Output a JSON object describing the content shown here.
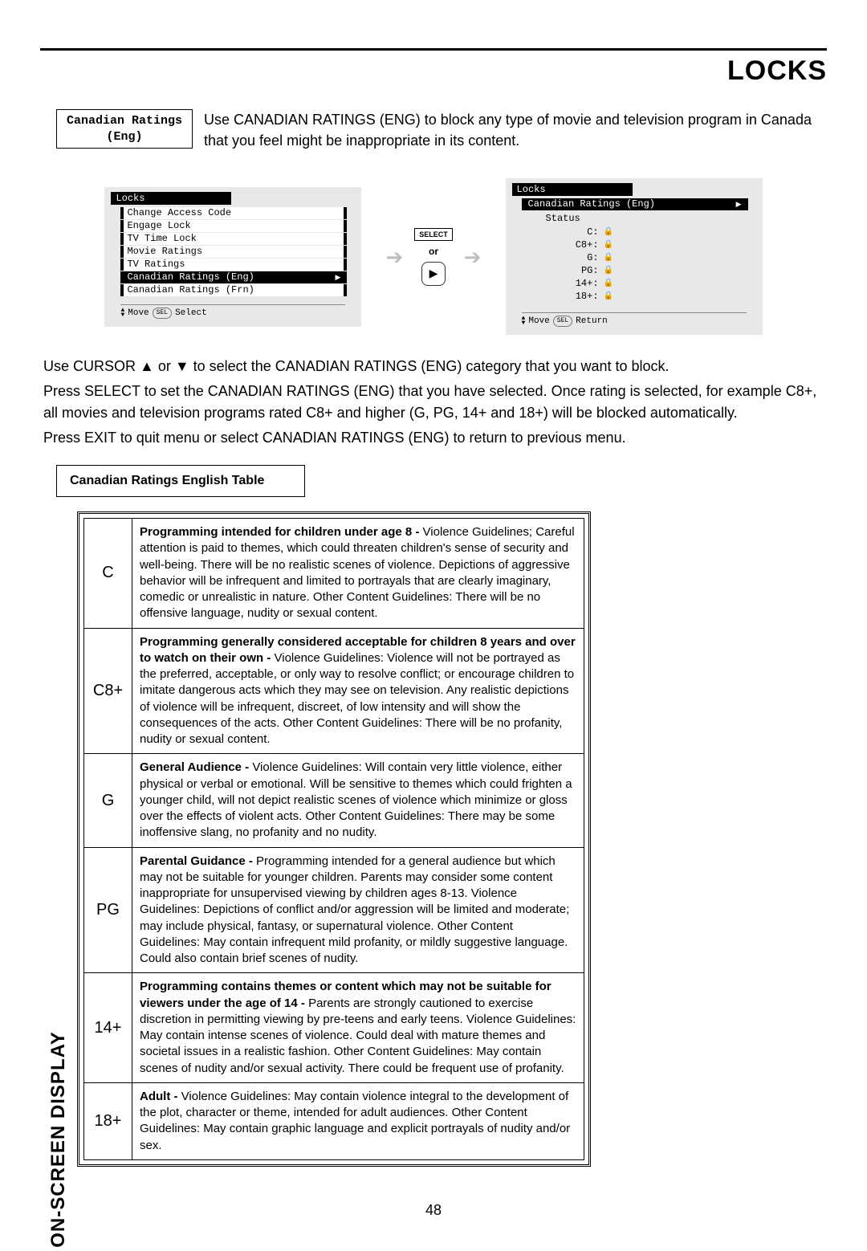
{
  "page": {
    "title": "LOCKS",
    "side_tab": "ON-SCREEN DISPLAY",
    "page_number": "48"
  },
  "label_box": {
    "line1": "Canadian Ratings",
    "line2": "(Eng)"
  },
  "intro_text": "Use CANADIAN RATINGS (ENG) to block any type of movie and television program in Canada that you feel might be inappropriate in its content.",
  "osd_left": {
    "title": "Locks",
    "items": [
      "Change Access Code",
      "Engage Lock",
      "TV Time Lock",
      "Movie Ratings",
      "TV Ratings",
      "Canadian Ratings (Eng)",
      "Canadian Ratings (Frn)"
    ],
    "highlight_index": 5,
    "footer_move": "Move",
    "footer_sel_btn": "SEL",
    "footer_select": "Select"
  },
  "middle": {
    "select_label": "SELECT",
    "or": "or",
    "play_glyph": "▶"
  },
  "osd_right": {
    "title": "Locks",
    "subtitle": "Canadian Ratings (Eng)",
    "status_label": "Status",
    "rows": [
      {
        "label": "C:"
      },
      {
        "label": "C8+:"
      },
      {
        "label": "G:"
      },
      {
        "label": "PG:"
      },
      {
        "label": "14+:"
      },
      {
        "label": "18+:"
      }
    ],
    "footer_move": "Move",
    "footer_sel_btn": "SEL",
    "footer_return": "Return"
  },
  "paragraphs": {
    "p1": "Use CURSOR ▲ or ▼ to select the CANADIAN RATINGS (ENG) category that you want to block.",
    "p2": "Press SELECT to set the CANADIAN RATINGS (ENG) that you have selected. Once rating is selected, for example C8+, all movies and television programs rated C8+ and higher (G, PG, 14+ and 18+) will be blocked automatically.",
    "p3": "Press EXIT to quit menu or select CANADIAN RATINGS (ENG) to return to previous menu."
  },
  "table_caption": "Canadian Ratings English Table",
  "ratings_rows": [
    {
      "code": "C",
      "lead": "Programming intended for children under age 8 - ",
      "body": "Violence Guidelines; Careful attention is paid to themes, which could threaten children's sense of security and well-being.  There will be no realistic scenes of violence. Depictions of aggressive behavior will be infrequent and limited to portrayals that are clearly imaginary, comedic or unrealistic in nature.  Other Content Guidelines:  There will be no offensive language, nudity or sexual content."
    },
    {
      "code": "C8+",
      "lead": "Programming generally considered acceptable for children 8 years and over to watch on their own - ",
      "body": "Violence Guidelines: Violence will not be portrayed as the preferred, acceptable, or only way to resolve conflict; or encourage children to imitate dangerous acts which they may see on television.  Any realistic depictions of violence will be infrequent, discreet, of low intensity and will show the consequences of the acts.  Other Content Guidelines: There will be no profanity, nudity or sexual content."
    },
    {
      "code": "G",
      "lead": "General Audience - ",
      "body": "Violence Guidelines: Will contain very little violence, either physical or verbal or emotional.  Will be sensitive to themes which could frighten a younger child, will not depict realistic scenes of violence which minimize or gloss over the effects of violent acts.  Other Content Guidelines: There may be some inoffensive slang, no profanity and no nudity."
    },
    {
      "code": "PG",
      "lead": "Parental Guidance - ",
      "body": " Programming intended for a general audience but which may not be suitable for younger children.  Parents may consider some content inappropriate for unsupervised viewing by children ages 8-13.  Violence Guidelines: Depictions of conflict and/or aggression will be limited and moderate; may include physical, fantasy, or supernatural violence.  Other Content Guidelines:  May contain infrequent mild profanity, or mildly suggestive language.  Could also contain brief scenes of nudity."
    },
    {
      "code": "14+",
      "lead": "Programming contains themes or content which may not be suitable for viewers under the age of 14 - ",
      "body": " Parents are strongly cautioned to exercise discretion in permitting viewing by pre-teens and early teens.  Violence Guidelines: May contain intense scenes of violence.  Could deal with mature themes and societal issues in a realistic fashion.  Other Content Guidelines: May contain scenes of nudity and/or sexual activity.  There could be frequent use of profanity."
    },
    {
      "code": "18+",
      "lead": "Adult - ",
      "body": "Violence Guidelines: May contain violence integral to the development of the plot, character or theme, intended for adult audiences.  Other Content Guidelines: May contain graphic language and explicit portrayals of nudity and/or sex."
    }
  ]
}
